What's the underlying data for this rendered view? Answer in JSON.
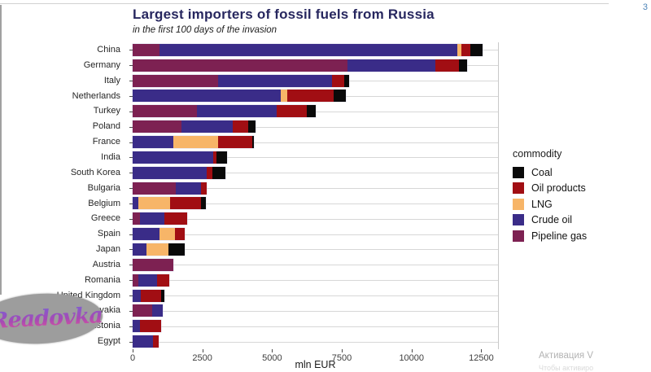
{
  "page": {
    "slide_number": "3",
    "logo_text": "Readovka",
    "activation_watermark_line1": "Активация V",
    "activation_watermark_line2": "Чтобы активиро"
  },
  "chart_data": {
    "type": "bar",
    "orientation": "horizontal",
    "stacked": true,
    "title": "Largest importers of fossil fuels from Russia",
    "subtitle": "in the first 100 days of the invasion",
    "xlabel": "mln EUR",
    "x_ticks": [
      0,
      2500,
      5000,
      7500,
      10000,
      12500
    ],
    "xlim": [
      0,
      13100
    ],
    "grid": "horizontal-row-lines",
    "legend": {
      "title": "commodity",
      "position": "right",
      "entries": [
        {
          "key": "coal",
          "label": "Coal",
          "color": "#0a0a0a"
        },
        {
          "key": "oil_products",
          "label": "Oil products",
          "color": "#a10e13"
        },
        {
          "key": "lng",
          "label": "LNG",
          "color": "#f7b568"
        },
        {
          "key": "crude_oil",
          "label": "Crude oil",
          "color": "#3a2c88"
        },
        {
          "key": "pipeline_gas",
          "label": "Pipeline gas",
          "color": "#7d2152"
        }
      ]
    },
    "stack_order": [
      "pipeline_gas",
      "crude_oil",
      "lng",
      "oil_products",
      "coal"
    ],
    "categories": [
      "China",
      "Germany",
      "Italy",
      "Netherlands",
      "Turkey",
      "Poland",
      "France",
      "India",
      "South Korea",
      "Bulgaria",
      "Belgium",
      "Greece",
      "Spain",
      "Japan",
      "Austria",
      "Romania",
      "United Kingdom",
      "Slovakia",
      "Estonia",
      "Egypt"
    ],
    "series": [
      {
        "key": "pipeline_gas",
        "name": "Pipeline gas",
        "values": [
          950,
          7700,
          3050,
          0,
          2300,
          1750,
          0,
          0,
          0,
          1550,
          0,
          250,
          0,
          0,
          1450,
          200,
          0,
          700,
          0,
          0
        ]
      },
      {
        "key": "crude_oil",
        "name": "Crude oil",
        "values": [
          10700,
          3150,
          4100,
          5300,
          2850,
          1850,
          1450,
          2900,
          2650,
          900,
          200,
          900,
          950,
          500,
          0,
          680,
          300,
          380,
          260,
          730
        ]
      },
      {
        "key": "lng",
        "name": "LNG",
        "values": [
          150,
          0,
          0,
          250,
          0,
          0,
          1600,
          0,
          0,
          0,
          1150,
          0,
          580,
          790,
          0,
          0,
          0,
          0,
          0,
          0
        ]
      },
      {
        "key": "oil_products",
        "name": "Oil products",
        "values": [
          300,
          850,
          450,
          1650,
          1100,
          530,
          1250,
          100,
          200,
          200,
          1100,
          800,
          350,
          0,
          0,
          440,
          730,
          0,
          760,
          200
        ]
      },
      {
        "key": "coal",
        "name": "Coal",
        "values": [
          450,
          300,
          150,
          450,
          330,
          270,
          50,
          380,
          470,
          0,
          180,
          0,
          0,
          580,
          0,
          0,
          120,
          0,
          0,
          0
        ]
      }
    ]
  }
}
